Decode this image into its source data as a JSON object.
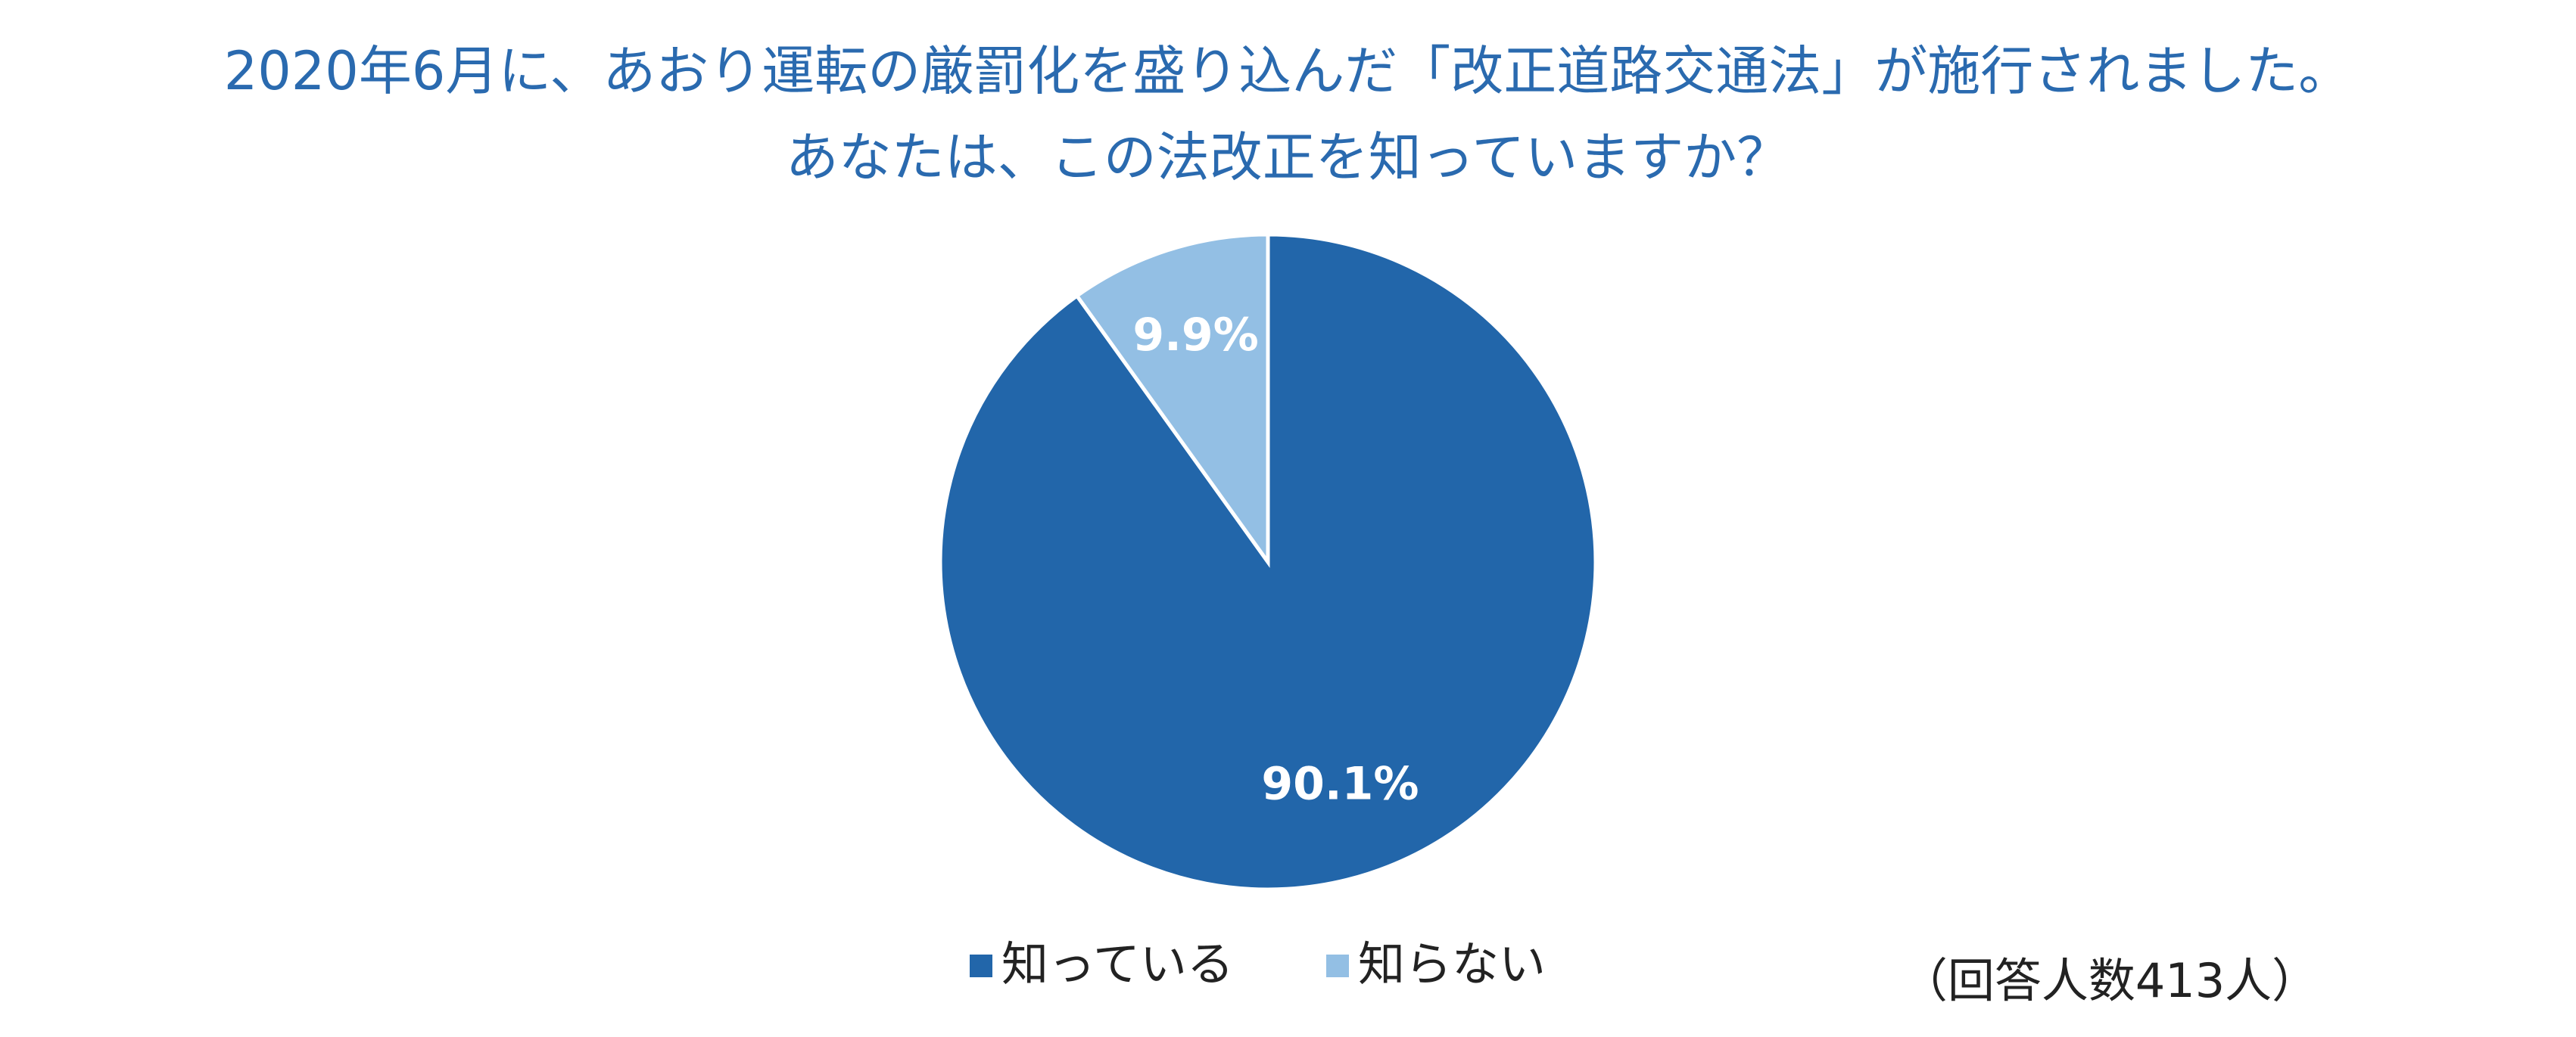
{
  "chart_data": {
    "type": "pie",
    "title_lines": [
      "2020年6月に、あおり運転の厳罰化を盛り込んだ「改正道路交通法」が施行されました。",
      "あなたは、この法改正を知っていますか？"
    ],
    "categories": [
      "知っている",
      "知らない"
    ],
    "values": [
      90.1,
      9.9
    ],
    "value_labels": [
      "90.1%",
      "9.9%"
    ],
    "colors": [
      "#2266aa",
      "#93bfe4"
    ],
    "note": "（回答人数413人）",
    "legend": "bottom"
  }
}
